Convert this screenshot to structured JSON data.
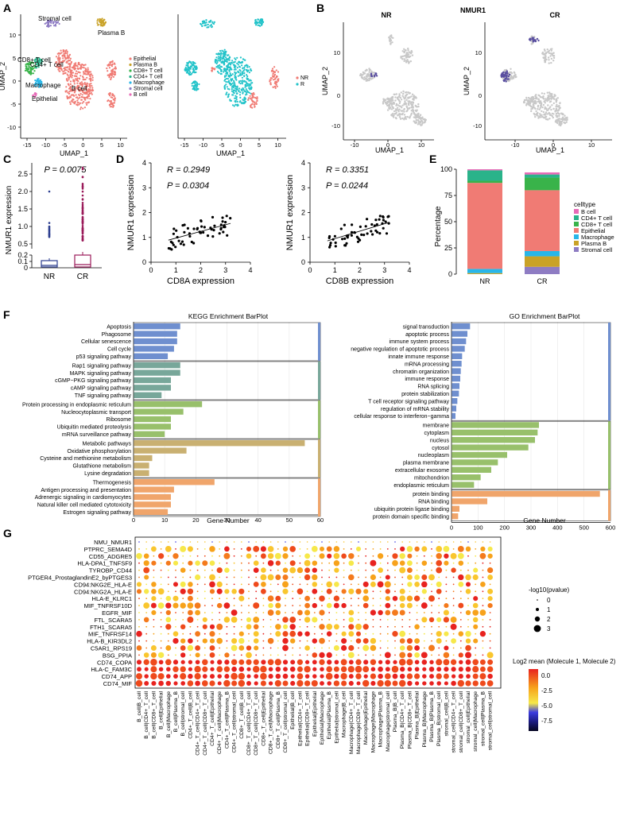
{
  "panel_labels": {
    "a": "A",
    "b": "B",
    "c": "C",
    "d": "D",
    "e": "E",
    "f": "F",
    "g": "G"
  },
  "panel_a": {
    "xlabel": "UMAP_1",
    "ylabel": "UMAP_2",
    "xticks": [
      "-15",
      "-10",
      "-5",
      "0",
      "5",
      "10"
    ],
    "yticks": [
      "10",
      "5",
      "0",
      "-5",
      "-10"
    ],
    "cluster_labels": [
      "Stromal cell",
      "Plasma B",
      "CD8+ T cell",
      "CD4+ T cell",
      "Macrophage",
      "Epithelial",
      "B cell"
    ],
    "legend1": [
      "Epithelial",
      "Plasma B",
      "CD8+ T cell",
      "CD4+ T cell",
      "Macrophage",
      "Stromal cell",
      "B cell"
    ],
    "legend2": [
      "NR",
      "R"
    ],
    "colors": {
      "epithelial": "#f07b74",
      "plasmaB": "#c9a227",
      "cd8": "#39b34a",
      "cd4": "#2ab38a",
      "macrophage": "#29b6e8",
      "stromal": "#8e7cc3",
      "bcell": "#e86bb8",
      "nr": "#f07b74",
      "r": "#22c3c9"
    }
  },
  "panel_b": {
    "title": "NMUR1",
    "sub1": "NR",
    "sub2": "CR",
    "xlabel": "UMAP_1",
    "ylabel": "UMAP_2",
    "xticks": [
      "-10",
      "0",
      "10"
    ],
    "yticks": [
      "10",
      "0",
      "-10"
    ]
  },
  "panel_c": {
    "pvalue": "P = 0.0075",
    "ylabel": "NMUR1 expression",
    "yticks_top": [
      "2.5",
      "2.0",
      "1.5",
      "1.0",
      "0.5"
    ],
    "yticks_bottom": [
      "0.2",
      "0.1",
      "0"
    ],
    "groups": [
      "NR",
      "CR"
    ],
    "colors": {
      "NR": "#2c3e8f",
      "CR": "#9b1b5a"
    }
  },
  "panel_d": {
    "left": {
      "r": "R = 0.2949",
      "p": "P = 0.0304",
      "xlabel": "CD8A expression",
      "ylabel": "NMUR1 expression"
    },
    "right": {
      "r": "R = 0.3351",
      "p": "P = 0.0244",
      "xlabel": "CD8B expression",
      "ylabel": "NMUR1 expression"
    },
    "xticks": [
      "0",
      "1",
      "2",
      "3",
      "4"
    ],
    "yticks": [
      "4",
      "3",
      "2",
      "1",
      "0"
    ]
  },
  "panel_e": {
    "ylabel": "Percentage",
    "yticks": [
      "100",
      "75",
      "50",
      "25",
      "0"
    ],
    "categories": [
      "NR",
      "CR"
    ],
    "legend_title": "celltype",
    "legend": [
      "B cell",
      "CD4+ T cell",
      "CD8+ T cell",
      "Epithelial",
      "Macrophage",
      "Plasma B",
      "Stromal cell"
    ],
    "colors": [
      "#e86bb8",
      "#2ab38a",
      "#39b34a",
      "#f07b74",
      "#29b6e8",
      "#c9a227",
      "#8e7cc3"
    ],
    "stack_NR": [
      1,
      10,
      2,
      82,
      4,
      1,
      0
    ],
    "stack_CR": [
      2,
      3,
      12,
      58,
      5,
      10,
      7
    ]
  },
  "panel_f": {
    "kegg_title": "KEGG Enrichment BarPlot",
    "go_title": "GO Enrichment BarPlot",
    "xlabel": "Gene Number",
    "kegg_xticks": [
      "0",
      "10",
      "20",
      "30",
      "40",
      "50",
      "60"
    ],
    "go_xticks": [
      "0",
      "100",
      "200",
      "300",
      "400",
      "500",
      "600"
    ],
    "kegg_terms": [
      {
        "t": "Apoptosis",
        "v": 15,
        "g": 0
      },
      {
        "t": "Phagosome",
        "v": 14,
        "g": 0
      },
      {
        "t": "Cellular senescence",
        "v": 14,
        "g": 0
      },
      {
        "t": "Cell cycle",
        "v": 13,
        "g": 0
      },
      {
        "t": "p53 signaling pathway",
        "v": 11,
        "g": 0
      },
      {
        "t": "Rap1 signaling pathway",
        "v": 15,
        "g": 1
      },
      {
        "t": "MAPK signaling pathway",
        "v": 15,
        "g": 1
      },
      {
        "t": "cGMP−PKG signaling pathway",
        "v": 12,
        "g": 1
      },
      {
        "t": "cAMP signaling pathway",
        "v": 12,
        "g": 1
      },
      {
        "t": "TNF signaling pathway",
        "v": 9,
        "g": 1
      },
      {
        "t": "Protein processing in endoplasmic reticulum",
        "v": 22,
        "g": 2
      },
      {
        "t": "Nucleocytoplasmic transport",
        "v": 16,
        "g": 2
      },
      {
        "t": "Ribosome",
        "v": 12,
        "g": 2
      },
      {
        "t": "Ubiquitin mediated proteolysis",
        "v": 12,
        "g": 2
      },
      {
        "t": "mRNA surveillance pathway",
        "v": 10,
        "g": 2
      },
      {
        "t": "Metabolic pathways",
        "v": 55,
        "g": 3
      },
      {
        "t": "Oxidative phosphorylation",
        "v": 17,
        "g": 3
      },
      {
        "t": "Cysteine and methionine metabolism",
        "v": 6,
        "g": 3
      },
      {
        "t": "Glutathione metabolism",
        "v": 5,
        "g": 3
      },
      {
        "t": "Lysine degradation",
        "v": 5,
        "g": 3
      },
      {
        "t": "Thermogenesis",
        "v": 26,
        "g": 4
      },
      {
        "t": "Antigen processing and presentation",
        "v": 13,
        "g": 4
      },
      {
        "t": "Adrenergic signaling in cardiomyocytes",
        "v": 12,
        "g": 4
      },
      {
        "t": "Natural killer cell mediated cytotoxicity",
        "v": 12,
        "g": 4
      },
      {
        "t": "Estrogen signaling pathway",
        "v": 11,
        "g": 4
      }
    ],
    "kegg_colors": [
      "#6f8fcf",
      "#78a79a",
      "#98c06b",
      "#c9b071",
      "#f0a56b"
    ],
    "go_terms": [
      {
        "t": "signal transduction",
        "v": 70,
        "g": 0
      },
      {
        "t": "apoptotic process",
        "v": 60,
        "g": 0
      },
      {
        "t": "immune system process",
        "v": 55,
        "g": 0
      },
      {
        "t": "negative regulation of apoptotic process",
        "v": 50,
        "g": 0
      },
      {
        "t": "innate immune response",
        "v": 40,
        "g": 0
      },
      {
        "t": "mRNA processing",
        "v": 38,
        "g": 0
      },
      {
        "t": "chromatin organization",
        "v": 35,
        "g": 0
      },
      {
        "t": "immune response",
        "v": 33,
        "g": 0
      },
      {
        "t": "RNA splicing",
        "v": 30,
        "g": 0
      },
      {
        "t": "protein stabilization",
        "v": 28,
        "g": 0
      },
      {
        "t": "T cell receptor signaling pathway",
        "v": 22,
        "g": 0
      },
      {
        "t": "regulation of mRNA stability",
        "v": 18,
        "g": 0
      },
      {
        "t": "cellular response to interferon−gamma",
        "v": 15,
        "g": 0
      },
      {
        "t": "membrane",
        "v": 330,
        "g": 1
      },
      {
        "t": "cytoplasm",
        "v": 325,
        "g": 1
      },
      {
        "t": "nucleus",
        "v": 315,
        "g": 1
      },
      {
        "t": "cytosol",
        "v": 290,
        "g": 1
      },
      {
        "t": "nucleoplasm",
        "v": 210,
        "g": 1
      },
      {
        "t": "plasma membrane",
        "v": 175,
        "g": 1
      },
      {
        "t": "extracellular exosome",
        "v": 150,
        "g": 1
      },
      {
        "t": "mitochondrion",
        "v": 110,
        "g": 1
      },
      {
        "t": "endoplasmic reticulum",
        "v": 85,
        "g": 1
      },
      {
        "t": "protein binding",
        "v": 560,
        "g": 2
      },
      {
        "t": "RNA binding",
        "v": 135,
        "g": 2
      },
      {
        "t": "ubiquitin protein ligase binding",
        "v": 30,
        "g": 2
      },
      {
        "t": "protein domain specific binding",
        "v": 25,
        "g": 2
      }
    ],
    "go_colors": [
      "#6f8fcf",
      "#98c06b",
      "#f0a56b"
    ]
  },
  "panel_g": {
    "rows": [
      "NMU_NMUR1",
      "PTPRC_SEMA4D",
      "CD55_ADGRE5",
      "HLA-DPA1_TNFSF9",
      "TYROBP_CD44",
      "PTGER4_ProstaglandinE2_byPTGES3",
      "CD94:NKG2E_HLA-E",
      "CD94:NKG2A_HLA-E",
      "HLA-E_KLRC1",
      "MIF_TNFRSF10D",
      "EGFR_MIF",
      "FTL_SCARA5",
      "FTH1_SCARA5",
      "MIF_TNFRSF14",
      "HLA-B_KIR3DL2",
      "C5AR1_RPS19",
      "BSG_PPIA",
      "CD74_COPA",
      "HLA-C_FAM3C",
      "CD74_APP",
      "CD74_MIF"
    ],
    "cols": [
      "B_cell|B_cell",
      "B_cell|CD4+_T_cell",
      "B_cell|CD8+_T_cell",
      "B_cell|Epithelial",
      "B_cell|Macrophage",
      "B_cell|Plasma_B",
      "B_cell|stromal_cell",
      "CD4+_T_cell|B_cell",
      "CD4+_T_cell|CD4+_T_cell",
      "CD4+_T_cell|CD8+_T_cell",
      "CD4+_T_cell|Epithelial",
      "CD4+_T_cell|Macrophage",
      "CD4+_T_cell|Plasma_B",
      "CD4+_T_cell|stromal_cell",
      "CD8+_T_cell|B_cell",
      "CD8+_T_cell|CD4+_T_cell",
      "CD8+_T_cell|CD8+_T_cell",
      "CD8+_T_cell|Epithelial",
      "CD8+_T_cell|Macrophage",
      "CD8+_T_cell|Plasma_B",
      "CD8+_T_cell|stromal_cell",
      "Epithelial|B_cell",
      "Epithelial|CD4+_T_cell",
      "Epithelial|CD8+_T_cell",
      "Epithelial|Epithelial",
      "Epithelial|Macrophage",
      "Epithelial|Plasma_B",
      "Epithelial|stromal_cell",
      "Macrophage|B_cell",
      "Macrophage|CD4+_T_cell",
      "Macrophage|CD8+_T_cell",
      "Macrophage|Epithelial",
      "Macrophage|Macrophage",
      "Macrophage|Plasma_B",
      "Macrophage|stromal_cell",
      "Plasma_B|B_cell",
      "Plasma_B|CD4+_T_cell",
      "Plasma_B|CD8+_T_cell",
      "Plasma_B|Epithelial",
      "Plasma_B|Macrophage",
      "Plasma_B|Plasma_B",
      "Plasma_B|stromal_cell",
      "stromal_cell|B_cell",
      "stromal_cell|CD4+_T_cell",
      "stromal_cell|CD8+_T_cell",
      "stromal_cell|Epithelial",
      "stromal_cell|Macrophage",
      "stromal_cell|Plasma_B",
      "stromal_cell|stromal_cell"
    ],
    "size_legend_title": "-log10(pvalue)",
    "size_legend": [
      "0",
      "1",
      "2",
      "3"
    ],
    "color_legend_title": "Log2 mean (Molecule 1, Molecule 2)",
    "color_legend": [
      "0.0",
      "-2.5",
      "-5.0",
      "-7.5"
    ]
  }
}
